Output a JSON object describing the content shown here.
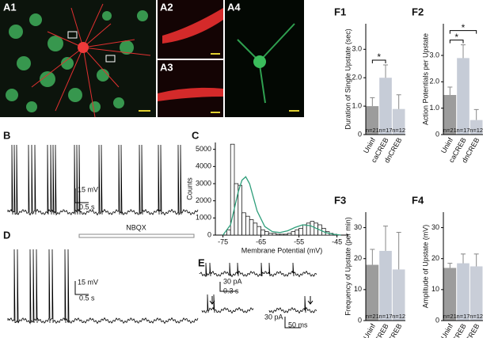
{
  "panel_labels": [
    "A1",
    "A2",
    "A3",
    "A4",
    "B",
    "D",
    "E"
  ],
  "scale_bars": {
    "B": [
      "15 mV",
      "0.5 s"
    ],
    "D": [
      "15 mV",
      "0.5 s"
    ],
    "E": [
      "30 pA",
      "0.3 s",
      "30 pA",
      "50 ms"
    ]
  },
  "annotations": {
    "D": "NBQX"
  },
  "chart_data": [
    {
      "type": "histogram",
      "title": "C",
      "x_label": "Membrane Potential (mV)",
      "y_label": "Counts",
      "bins": [
        -74,
        -73,
        -72,
        -71,
        -70,
        -69,
        -68,
        -67,
        -66,
        -65,
        -64,
        -63,
        -62,
        -61,
        -60,
        -59,
        -58,
        -57,
        -56,
        -55,
        -54,
        -53,
        -52,
        -51,
        -50,
        -49,
        -48,
        -47,
        -46,
        -45,
        -44,
        -43
      ],
      "counts": [
        300,
        5300,
        3000,
        2900,
        1300,
        1100,
        900,
        700,
        500,
        300,
        200,
        100,
        100,
        50,
        50,
        50,
        100,
        200,
        300,
        400,
        600,
        700,
        800,
        700,
        600,
        400,
        200,
        100,
        50,
        0,
        0
      ],
      "color": "#ffffff",
      "fit": {
        "color": "#2e9e7a",
        "x": [
          -75,
          -73,
          -71,
          -70,
          -69,
          -68,
          -67,
          -66,
          -64,
          -62,
          -60,
          -58,
          -56,
          -54,
          -52,
          -50,
          -48,
          -46,
          -44
        ],
        "values": [
          0,
          600,
          2500,
          3200,
          3400,
          3000,
          2200,
          1400,
          500,
          200,
          150,
          250,
          450,
          600,
          550,
          350,
          150,
          50,
          0
        ]
      },
      "xlim": [
        -77,
        -42
      ],
      "xticks": [
        -75,
        -65,
        -55,
        -45
      ],
      "ylim": [
        0,
        5400
      ],
      "yticks": [
        0,
        1000,
        2000,
        3000,
        4000,
        5000
      ]
    },
    {
      "type": "bar",
      "title": "F1",
      "y_label": "Duration of Single Upstate (sec)",
      "categories": [
        "Uninf",
        "caCREB",
        "dnCREB"
      ],
      "values": [
        1.0,
        2.0,
        0.9
      ],
      "errors": [
        0.3,
        0.45,
        0.5
      ],
      "n_labels": [
        "n=21",
        "n=17",
        "n=12"
      ],
      "colors": [
        "#9c9c9c",
        "#c6ccd7",
        "#c9ced8"
      ],
      "significance": [
        "*"
      ],
      "ylim": [
        0,
        3.9
      ],
      "yticks": [
        0,
        {
          "value": 1,
          "label": "1.0"
        },
        {
          "value": 2,
          "label": "2.0"
        },
        {
          "value": 3,
          "label": "3.0"
        }
      ]
    },
    {
      "type": "bar",
      "title": "F2",
      "y_label": "Action Potentials per Upstate",
      "categories": [
        "Uninf",
        "caCREB",
        "dnCREB"
      ],
      "values": [
        1.5,
        2.9,
        0.55
      ],
      "errors": [
        0.3,
        0.5,
        0.4
      ],
      "n_labels": [
        "n=21",
        "n=17",
        "n=12"
      ],
      "colors": [
        "#9c9c9c",
        "#c6ccd7",
        "#c9ced8"
      ],
      "significance": [
        "*",
        "*"
      ],
      "ylim": [
        0,
        4.2
      ],
      "yticks": [
        0,
        {
          "value": 1,
          "label": "1.0"
        },
        {
          "value": 2,
          "label": "2.0"
        },
        {
          "value": 3,
          "label": "3.0"
        }
      ]
    },
    {
      "type": "bar",
      "title": "F3",
      "y_label": "Frequency of Upstate (per min)",
      "categories": [
        "Uninf",
        "caCREB",
        "dnCREB"
      ],
      "values": [
        18,
        22.5,
        16.5
      ],
      "errors": [
        5,
        8,
        12
      ],
      "n_labels": [
        "n=21",
        "n=17",
        "n=12"
      ],
      "colors": [
        "#9c9c9c",
        "#c6ccd7",
        "#c9ced8"
      ],
      "significance": [],
      "ylim": [
        0,
        35
      ],
      "yticks": [
        0,
        10,
        20,
        30
      ]
    },
    {
      "type": "bar",
      "title": "F4",
      "y_label": "Amplitude of Upstate (mV)",
      "categories": [
        "Uninf",
        "caCREB",
        "dnCREB"
      ],
      "values": [
        17,
        18.5,
        17.5
      ],
      "errors": [
        1.5,
        3,
        4
      ],
      "n_labels": [
        "n=21",
        "n=17",
        "n=12"
      ],
      "colors": [
        "#9c9c9c",
        "#c6ccd7",
        "#c9ced8"
      ],
      "significance": [],
      "ylim": [
        0,
        35
      ],
      "yticks": [
        0,
        10,
        20,
        30
      ]
    }
  ]
}
